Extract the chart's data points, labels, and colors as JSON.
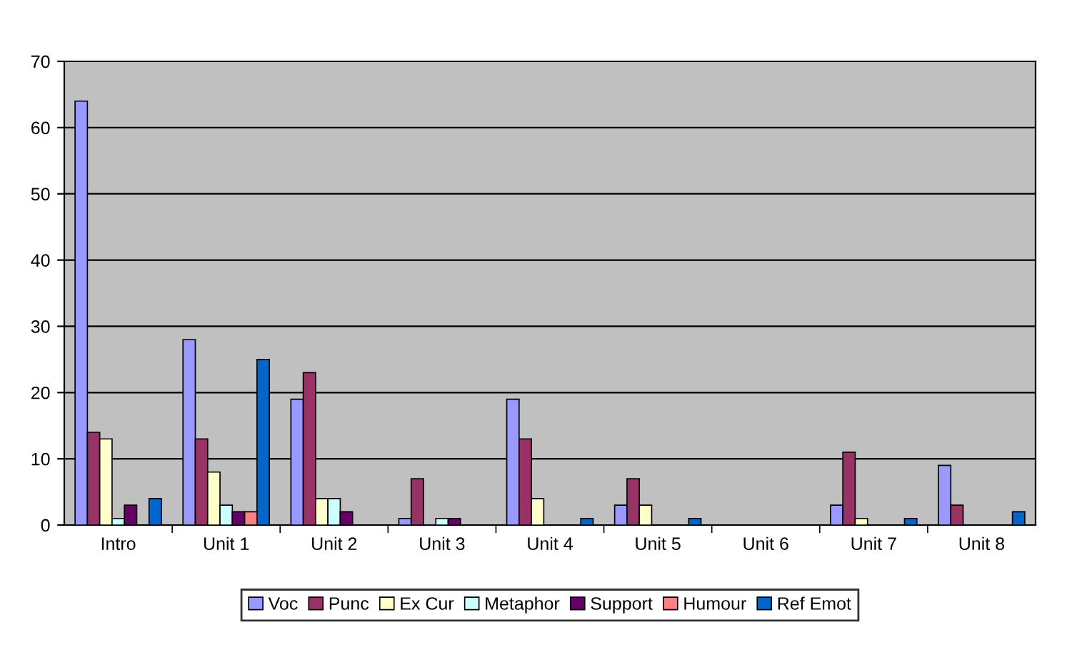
{
  "chart_data": {
    "type": "bar",
    "categories": [
      "Intro",
      "Unit 1",
      "Unit 2",
      "Unit 3",
      "Unit 4",
      "Unit 5",
      "Unit 6",
      "Unit 7",
      "Unit 8"
    ],
    "series": [
      {
        "name": "Voc",
        "color": "#9999ff",
        "values": [
          64,
          28,
          19,
          1,
          19,
          3,
          0,
          3,
          9
        ]
      },
      {
        "name": "Punc",
        "color": "#993366",
        "values": [
          14,
          13,
          23,
          7,
          13,
          7,
          0,
          11,
          3
        ]
      },
      {
        "name": "Ex Cur",
        "color": "#ffffcc",
        "values": [
          13,
          8,
          4,
          0,
          4,
          3,
          0,
          1,
          0
        ]
      },
      {
        "name": "Metaphor",
        "color": "#ccffff",
        "values": [
          1,
          3,
          4,
          1,
          0,
          0,
          0,
          0,
          0
        ]
      },
      {
        "name": "Support",
        "color": "#660066",
        "values": [
          3,
          2,
          2,
          1,
          0,
          0,
          0,
          0,
          0
        ]
      },
      {
        "name": "Humour",
        "color": "#ff8080",
        "values": [
          0,
          2,
          0,
          0,
          0,
          0,
          0,
          0,
          0
        ]
      },
      {
        "name": "Ref Emot",
        "color": "#0066cc",
        "values": [
          4,
          25,
          0,
          0,
          1,
          1,
          0,
          1,
          2
        ]
      }
    ],
    "ylim": [
      0,
      70
    ],
    "yticks": [
      0,
      10,
      20,
      30,
      40,
      50,
      60,
      70
    ],
    "grid": "y",
    "legend": "bottom"
  }
}
